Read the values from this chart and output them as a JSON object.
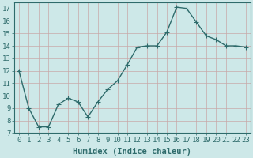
{
  "x": [
    0,
    1,
    2,
    3,
    4,
    5,
    6,
    7,
    8,
    9,
    10,
    11,
    12,
    13,
    14,
    15,
    16,
    17,
    18,
    19,
    20,
    21,
    22,
    23
  ],
  "y": [
    12,
    9,
    7.5,
    7.5,
    9.3,
    9.8,
    9.5,
    8.3,
    9.5,
    10.5,
    11.2,
    12.5,
    13.9,
    14.0,
    14.0,
    15.1,
    17.1,
    17.0,
    15.9,
    14.8,
    14.5,
    14.0,
    14.0,
    13.9
  ],
  "line_color": "#2e6b6b",
  "marker": "D",
  "marker_size": 2.0,
  "bg_color": "#cde8e8",
  "grid_color": "#b8d8d8",
  "xlabel": "Humidex (Indice chaleur)",
  "ylim": [
    7,
    17.5
  ],
  "xlim": [
    -0.5,
    23.5
  ],
  "yticks": [
    7,
    8,
    9,
    10,
    11,
    12,
    13,
    14,
    15,
    16,
    17
  ],
  "xticks": [
    0,
    1,
    2,
    3,
    4,
    5,
    6,
    7,
    8,
    9,
    10,
    11,
    12,
    13,
    14,
    15,
    16,
    17,
    18,
    19,
    20,
    21,
    22,
    23
  ],
  "tick_label_fontsize": 6.5,
  "xlabel_fontsize": 7.5,
  "line_width": 1.0
}
